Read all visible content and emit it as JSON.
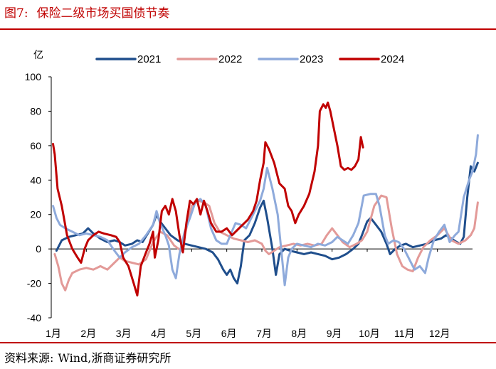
{
  "figure": {
    "label": "图7:",
    "title": "保险二级市场买国债节奏",
    "source_label": "资料来源:",
    "source_text": "Wind,浙商证券研究所"
  },
  "colors": {
    "accent": "#c00000",
    "2021": "#1f4e8c",
    "2022": "#e39a98",
    "2023": "#8eaadb",
    "2024": "#c00000"
  },
  "chart_data": {
    "type": "line",
    "unit": "亿",
    "ylim": [
      -40,
      100
    ],
    "yticks": [
      -40,
      -20,
      0,
      20,
      40,
      60,
      80,
      100
    ],
    "xlim": [
      0,
      12
    ],
    "xticks": [
      {
        "label": "1月",
        "x": 0
      },
      {
        "label": "2月",
        "x": 1
      },
      {
        "label": "3月",
        "x": 2
      },
      {
        "label": "4月",
        "x": 3
      },
      {
        "label": "5月",
        "x": 4
      },
      {
        "label": "6月",
        "x": 5
      },
      {
        "label": "7月",
        "x": 6
      },
      {
        "label": "8月",
        "x": 7
      },
      {
        "label": "9月",
        "x": 8
      },
      {
        "label": "10月",
        "x": 9
      },
      {
        "label": "11月",
        "x": 10
      },
      {
        "label": "12月",
        "x": 11
      }
    ],
    "legend_position": "top",
    "series": [
      {
        "name": "2021",
        "color": "#1f4e8c",
        "points": [
          [
            0.15,
            -1
          ],
          [
            0.3,
            5
          ],
          [
            0.5,
            7
          ],
          [
            0.7,
            8
          ],
          [
            0.9,
            9
          ],
          [
            1.05,
            12
          ],
          [
            1.2,
            9
          ],
          [
            1.4,
            6
          ],
          [
            1.6,
            4
          ],
          [
            1.8,
            5
          ],
          [
            1.95,
            4
          ],
          [
            2.1,
            2
          ],
          [
            2.3,
            3
          ],
          [
            2.45,
            5
          ],
          [
            2.6,
            4
          ],
          [
            2.75,
            9
          ],
          [
            2.9,
            14
          ],
          [
            3.0,
            20
          ],
          [
            3.1,
            16
          ],
          [
            3.25,
            12
          ],
          [
            3.4,
            8
          ],
          [
            3.6,
            5
          ],
          [
            3.8,
            3
          ],
          [
            4.0,
            2
          ],
          [
            4.2,
            1
          ],
          [
            4.4,
            0
          ],
          [
            4.6,
            -2
          ],
          [
            4.75,
            -6
          ],
          [
            4.9,
            -12
          ],
          [
            5.0,
            -15
          ],
          [
            5.1,
            -12
          ],
          [
            5.2,
            -17
          ],
          [
            5.3,
            -20
          ],
          [
            5.4,
            -10
          ],
          [
            5.5,
            5
          ],
          [
            5.65,
            8
          ],
          [
            5.8,
            15
          ],
          [
            5.95,
            24
          ],
          [
            6.05,
            28
          ],
          [
            6.15,
            18
          ],
          [
            6.3,
            0
          ],
          [
            6.4,
            -15
          ],
          [
            6.5,
            -3
          ],
          [
            6.65,
            0
          ],
          [
            6.8,
            -1
          ],
          [
            7.0,
            -2
          ],
          [
            7.2,
            -3
          ],
          [
            7.4,
            -2
          ],
          [
            7.6,
            -3
          ],
          [
            7.8,
            -4
          ],
          [
            8.0,
            -6
          ],
          [
            8.2,
            -5
          ],
          [
            8.4,
            -3
          ],
          [
            8.6,
            0
          ],
          [
            8.75,
            3
          ],
          [
            8.85,
            8
          ],
          [
            9.0,
            16
          ],
          [
            9.1,
            18
          ],
          [
            9.25,
            14
          ],
          [
            9.4,
            10
          ],
          [
            9.55,
            3
          ],
          [
            9.65,
            -3
          ],
          [
            9.8,
            0
          ],
          [
            9.95,
            2
          ],
          [
            10.1,
            3
          ],
          [
            10.3,
            1
          ],
          [
            10.5,
            2
          ],
          [
            10.7,
            3
          ],
          [
            10.9,
            5
          ],
          [
            11.1,
            6
          ],
          [
            11.25,
            8
          ],
          [
            11.4,
            6
          ],
          [
            11.55,
            4
          ],
          [
            11.65,
            3
          ],
          [
            11.75,
            7
          ],
          [
            11.85,
            30
          ],
          [
            11.95,
            48
          ],
          [
            12.05,
            45
          ],
          [
            12.15,
            50
          ]
        ]
      },
      {
        "name": "2022",
        "color": "#e39a98",
        "points": [
          [
            0.1,
            -3
          ],
          [
            0.2,
            -10
          ],
          [
            0.3,
            -20
          ],
          [
            0.4,
            -24
          ],
          [
            0.5,
            -18
          ],
          [
            0.6,
            -14
          ],
          [
            0.8,
            -12
          ],
          [
            1.0,
            -11
          ],
          [
            1.2,
            -12
          ],
          [
            1.4,
            -10
          ],
          [
            1.6,
            -12
          ],
          [
            1.8,
            -8
          ],
          [
            1.95,
            -5
          ],
          [
            2.1,
            -7
          ],
          [
            2.3,
            -8
          ],
          [
            2.5,
            -9
          ],
          [
            2.7,
            -6
          ],
          [
            2.9,
            4
          ],
          [
            3.1,
            10
          ],
          [
            3.3,
            8
          ],
          [
            3.5,
            2
          ],
          [
            3.7,
            -1
          ],
          [
            3.85,
            12
          ],
          [
            4.0,
            25
          ],
          [
            4.2,
            28
          ],
          [
            4.35,
            27
          ],
          [
            4.5,
            25
          ],
          [
            4.65,
            15
          ],
          [
            4.8,
            10
          ],
          [
            5.0,
            8
          ],
          [
            5.2,
            6
          ],
          [
            5.4,
            5
          ],
          [
            5.6,
            4
          ],
          [
            5.8,
            5
          ],
          [
            6.0,
            3
          ],
          [
            6.1,
            -1
          ],
          [
            6.2,
            -3
          ],
          [
            6.35,
            -1
          ],
          [
            6.5,
            1
          ],
          [
            6.7,
            2
          ],
          [
            6.9,
            3
          ],
          [
            7.1,
            2
          ],
          [
            7.3,
            3
          ],
          [
            7.5,
            2
          ],
          [
            7.7,
            3
          ],
          [
            7.85,
            8
          ],
          [
            8.0,
            12
          ],
          [
            8.15,
            8
          ],
          [
            8.3,
            4
          ],
          [
            8.5,
            1
          ],
          [
            8.7,
            3
          ],
          [
            8.85,
            5
          ],
          [
            9.0,
            10
          ],
          [
            9.2,
            25
          ],
          [
            9.4,
            31
          ],
          [
            9.55,
            30
          ],
          [
            9.7,
            12
          ],
          [
            9.85,
            -3
          ],
          [
            10.0,
            -10
          ],
          [
            10.15,
            -12
          ],
          [
            10.3,
            -13
          ],
          [
            10.45,
            -5
          ],
          [
            10.6,
            1
          ],
          [
            10.8,
            5
          ],
          [
            11.0,
            8
          ],
          [
            11.2,
            12
          ],
          [
            11.4,
            5
          ],
          [
            11.6,
            3
          ],
          [
            11.8,
            5
          ],
          [
            11.95,
            8
          ],
          [
            12.05,
            12
          ],
          [
            12.15,
            27
          ]
        ]
      },
      {
        "name": "2023",
        "color": "#8eaadb",
        "points": [
          [
            0.05,
            25
          ],
          [
            0.15,
            18
          ],
          [
            0.25,
            14
          ],
          [
            0.4,
            12
          ],
          [
            0.6,
            10
          ],
          [
            0.8,
            8
          ],
          [
            1.0,
            9
          ],
          [
            1.2,
            8
          ],
          [
            1.4,
            7
          ],
          [
            1.6,
            5
          ],
          [
            1.8,
            -1
          ],
          [
            1.95,
            -5
          ],
          [
            2.1,
            -2
          ],
          [
            2.3,
            1
          ],
          [
            2.5,
            3
          ],
          [
            2.7,
            8
          ],
          [
            2.9,
            14
          ],
          [
            3.0,
            22
          ],
          [
            3.1,
            15
          ],
          [
            3.25,
            8
          ],
          [
            3.35,
            2
          ],
          [
            3.45,
            -12
          ],
          [
            3.55,
            -17
          ],
          [
            3.65,
            -3
          ],
          [
            3.8,
            10
          ],
          [
            3.95,
            18
          ],
          [
            4.1,
            27
          ],
          [
            4.25,
            29
          ],
          [
            4.4,
            25
          ],
          [
            4.55,
            12
          ],
          [
            4.7,
            5
          ],
          [
            4.85,
            3
          ],
          [
            5.0,
            3
          ],
          [
            5.1,
            8
          ],
          [
            5.25,
            15
          ],
          [
            5.4,
            14
          ],
          [
            5.55,
            12
          ],
          [
            5.7,
            18
          ],
          [
            5.85,
            24
          ],
          [
            5.95,
            28
          ],
          [
            6.05,
            35
          ],
          [
            6.15,
            47
          ],
          [
            6.3,
            35
          ],
          [
            6.45,
            20
          ],
          [
            6.55,
            0
          ],
          [
            6.65,
            -21
          ],
          [
            6.75,
            -5
          ],
          [
            6.85,
            0
          ],
          [
            7.0,
            3
          ],
          [
            7.2,
            2
          ],
          [
            7.4,
            1
          ],
          [
            7.6,
            3
          ],
          [
            7.8,
            2
          ],
          [
            8.0,
            4
          ],
          [
            8.15,
            7
          ],
          [
            8.3,
            5
          ],
          [
            8.45,
            3
          ],
          [
            8.6,
            8
          ],
          [
            8.75,
            15
          ],
          [
            8.9,
            31
          ],
          [
            9.1,
            32
          ],
          [
            9.25,
            32
          ],
          [
            9.35,
            25
          ],
          [
            9.5,
            8
          ],
          [
            9.6,
            3
          ],
          [
            9.75,
            5
          ],
          [
            9.9,
            4
          ],
          [
            10.05,
            0
          ],
          [
            10.2,
            -6
          ],
          [
            10.35,
            -12
          ],
          [
            10.5,
            -10
          ],
          [
            10.65,
            -14
          ],
          [
            10.75,
            -5
          ],
          [
            10.9,
            5
          ],
          [
            11.05,
            10
          ],
          [
            11.2,
            14
          ],
          [
            11.35,
            4
          ],
          [
            11.5,
            8
          ],
          [
            11.6,
            10
          ],
          [
            11.75,
            30
          ],
          [
            11.9,
            40
          ],
          [
            12.0,
            45
          ],
          [
            12.1,
            55
          ],
          [
            12.15,
            66
          ]
        ]
      },
      {
        "name": "2024",
        "color": "#c00000",
        "points": [
          [
            0.05,
            61
          ],
          [
            0.1,
            55
          ],
          [
            0.18,
            35
          ],
          [
            0.3,
            25
          ],
          [
            0.45,
            8
          ],
          [
            0.6,
            0
          ],
          [
            0.75,
            -5
          ],
          [
            0.85,
            -8
          ],
          [
            0.95,
            0
          ],
          [
            1.05,
            5
          ],
          [
            1.2,
            8
          ],
          [
            1.35,
            10
          ],
          [
            1.5,
            9
          ],
          [
            1.7,
            8
          ],
          [
            1.85,
            7
          ],
          [
            1.95,
            4
          ],
          [
            2.05,
            -5
          ],
          [
            2.2,
            -10
          ],
          [
            2.35,
            -20
          ],
          [
            2.45,
            -27
          ],
          [
            2.55,
            -10
          ],
          [
            2.7,
            -2
          ],
          [
            2.8,
            3
          ],
          [
            2.9,
            10
          ],
          [
            2.95,
            -5
          ],
          [
            3.05,
            5
          ],
          [
            3.15,
            22
          ],
          [
            3.25,
            25
          ],
          [
            3.35,
            20
          ],
          [
            3.45,
            29
          ],
          [
            3.55,
            22
          ],
          [
            3.65,
            8
          ],
          [
            3.75,
            -2
          ],
          [
            3.85,
            15
          ],
          [
            3.95,
            28
          ],
          [
            4.05,
            26
          ],
          [
            4.15,
            29
          ],
          [
            4.25,
            20
          ],
          [
            4.35,
            28
          ],
          [
            4.45,
            22
          ],
          [
            4.55,
            15
          ],
          [
            4.7,
            10
          ],
          [
            4.85,
            10
          ],
          [
            5.0,
            12
          ],
          [
            5.15,
            8
          ],
          [
            5.3,
            11
          ],
          [
            5.45,
            14
          ],
          [
            5.6,
            17
          ],
          [
            5.75,
            22
          ],
          [
            5.85,
            28
          ],
          [
            5.95,
            40
          ],
          [
            6.05,
            50
          ],
          [
            6.1,
            62
          ],
          [
            6.2,
            58
          ],
          [
            6.35,
            50
          ],
          [
            6.5,
            38
          ],
          [
            6.65,
            35
          ],
          [
            6.75,
            25
          ],
          [
            6.85,
            22
          ],
          [
            6.95,
            15
          ],
          [
            7.05,
            20
          ],
          [
            7.2,
            25
          ],
          [
            7.35,
            32
          ],
          [
            7.5,
            45
          ],
          [
            7.6,
            60
          ],
          [
            7.65,
            80
          ],
          [
            7.75,
            84
          ],
          [
            7.82,
            82
          ],
          [
            7.88,
            85
          ],
          [
            7.95,
            80
          ],
          [
            8.05,
            70
          ],
          [
            8.15,
            60
          ],
          [
            8.25,
            48
          ],
          [
            8.35,
            46
          ],
          [
            8.45,
            47
          ],
          [
            8.55,
            46
          ],
          [
            8.65,
            48
          ],
          [
            8.75,
            52
          ],
          [
            8.82,
            65
          ],
          [
            8.88,
            59
          ]
        ]
      }
    ]
  }
}
